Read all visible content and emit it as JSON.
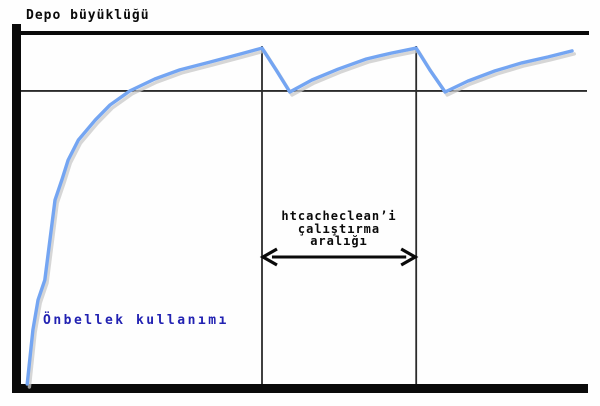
{
  "header": {
    "title": "Depo büyüklüğü"
  },
  "labels": {
    "curve_label": "Önbellek kullanımı",
    "interval_line1": "htcacheclean’i",
    "interval_line2": "çalıştırma",
    "interval_line3": "aralığı"
  },
  "colors": {
    "curve": "#74a5f2",
    "curve_shadow": "#c8c8c8",
    "curve_label_text": "#2222b2",
    "axis": "#0a0a0a",
    "guide_line": "#2b2b2b",
    "arrow": "#0a0a0a"
  },
  "chart_data": {
    "type": "line",
    "title": "Depo büyüklüğü",
    "xlabel": "",
    "ylabel": "",
    "x_range": [
      0,
      100
    ],
    "y_range": [
      0,
      100
    ],
    "grid": false,
    "legend": "none",
    "series": [
      {
        "name": "Önbellek kullanımı",
        "x": [
          1.1,
          2.1,
          3.0,
          4.2,
          5.1,
          6.0,
          7.2,
          8.3,
          10.1,
          13.1,
          15.7,
          19.2,
          23.6,
          28.0,
          33.3,
          38.6,
          42.5,
          45.0,
          47.4,
          51.3,
          55.9,
          60.9,
          65.4,
          69.7,
          72.1,
          74.8,
          78.8,
          83.6,
          88.4,
          93.0,
          97.2
        ],
        "y": [
          0,
          15.4,
          23.9,
          29.6,
          41.0,
          52.4,
          58.1,
          63.8,
          69.5,
          75.2,
          79.5,
          83.5,
          86.9,
          89.5,
          91.7,
          94.0,
          95.7,
          89.5,
          83.2,
          86.6,
          89.7,
          92.6,
          94.3,
          95.7,
          89.5,
          83.2,
          86.3,
          89.2,
          91.5,
          93.2,
          94.9
        ]
      }
    ],
    "reference_lines": {
      "storage_size_y": 100,
      "cache_threshold_y": 83.5,
      "cleanup_run_x": [
        42.5,
        69.7
      ],
      "cleanup_line_top_y": 96.3
    },
    "annotations": [
      {
        "type": "interval-arrow",
        "text": "htcacheclean’i çalıştırma aralığı",
        "x_from": 42.5,
        "x_to": 69.7
      },
      {
        "type": "series-label",
        "text": "Önbellek kullanımı"
      },
      {
        "type": "axis-title",
        "text": "Depo büyüklüğü"
      }
    ]
  }
}
